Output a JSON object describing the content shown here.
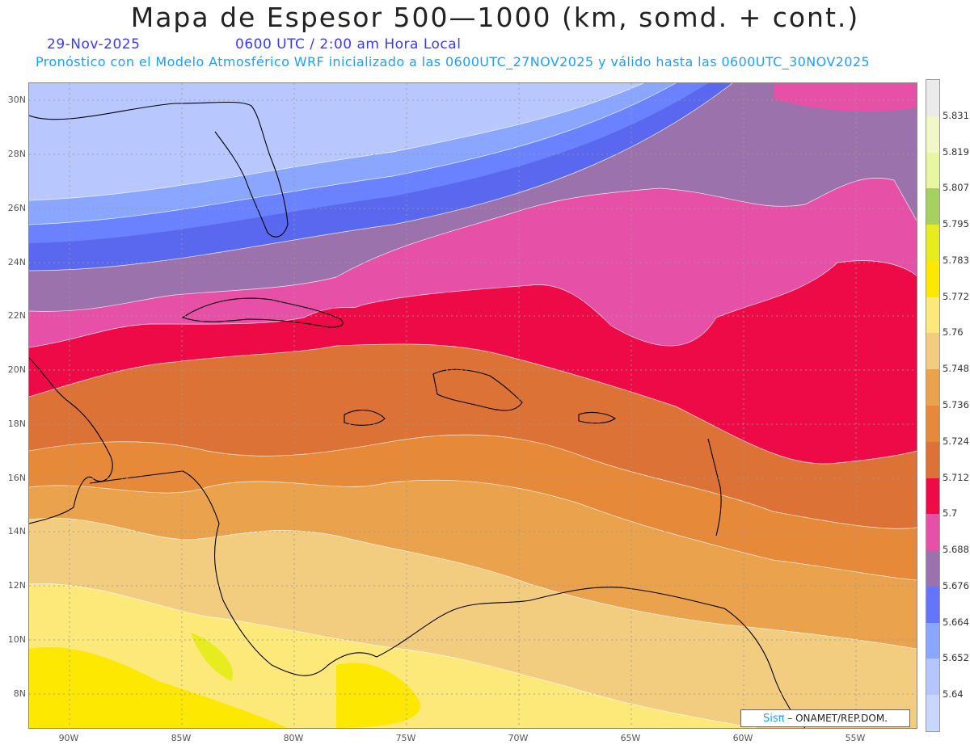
{
  "title": "Mapa de Espesor 500—1000 (km, somd. + cont.)",
  "date": "29-Nov-2025",
  "time_line": "0600 UTC / 2:00 am Hora Local",
  "forecast_line": "Pronóstico con el Modelo Atmosférico WRF inicializado a las 0600UTC_27NOV2025 y válido hasta las  0600UTC_30NOV2025",
  "credit": {
    "brand": "Sisπ",
    "text": " –  ONAMET/REP.DOM."
  },
  "lat_labels": [
    "30N",
    "28N",
    "26N",
    "24N",
    "22N",
    "20N",
    "18N",
    "16N",
    "14N",
    "12N",
    "10N",
    "8N"
  ],
  "lon_labels": [
    "90W",
    "85W",
    "80W",
    "75W",
    "70W",
    "65W",
    "60W",
    "55W"
  ],
  "colorbar": {
    "labels": [
      "5.831",
      "5.819",
      "5.807",
      "5.795",
      "5.783",
      "5.772",
      "5.76",
      "5.748",
      "5.736",
      "5.724",
      "5.712",
      "5.7",
      "5.688",
      "5.676",
      "5.664",
      "5.652",
      "5.64"
    ],
    "colors": [
      "#ebebeb",
      "#f2f7c8",
      "#e6f7a0",
      "#a8d060",
      "#e6ec1e",
      "#fce800",
      "#fde97a",
      "#f2cd80",
      "#eba24c",
      "#e68a3a",
      "#dc7236",
      "#ee0a46",
      "#e650a6",
      "#9b72ac",
      "#6474fc",
      "#8aa6ff",
      "#b5c6ff",
      "#c9d6ff"
    ]
  },
  "colors": {
    "title_blue": "#3a3aff",
    "subtitle_cyan": "#1aa0ff"
  }
}
